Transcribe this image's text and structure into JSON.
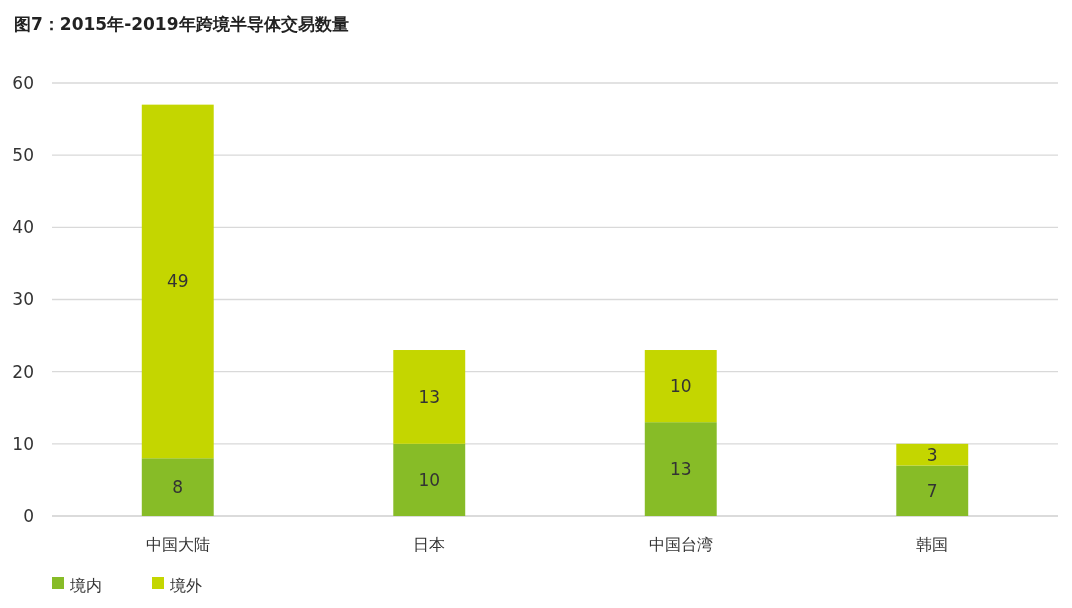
{
  "chart_data": {
    "type": "bar",
    "title": "图7：2015年-2019年跨境半导体交易数量",
    "categories": [
      "中国大陆",
      "日本",
      "中国台湾",
      "韩国"
    ],
    "series": [
      {
        "name": "境内",
        "color": "#87bc27",
        "values": [
          8,
          10,
          13,
          7
        ]
      },
      {
        "name": "境外",
        "color": "#c4d600",
        "values": [
          49,
          13,
          10,
          3
        ]
      }
    ],
    "stacked": true,
    "ylim": [
      0,
      60
    ],
    "yticks": [
      0,
      10,
      20,
      30,
      40,
      50,
      60
    ],
    "grid": "y",
    "legend": "bottom left",
    "data_labels": true
  }
}
